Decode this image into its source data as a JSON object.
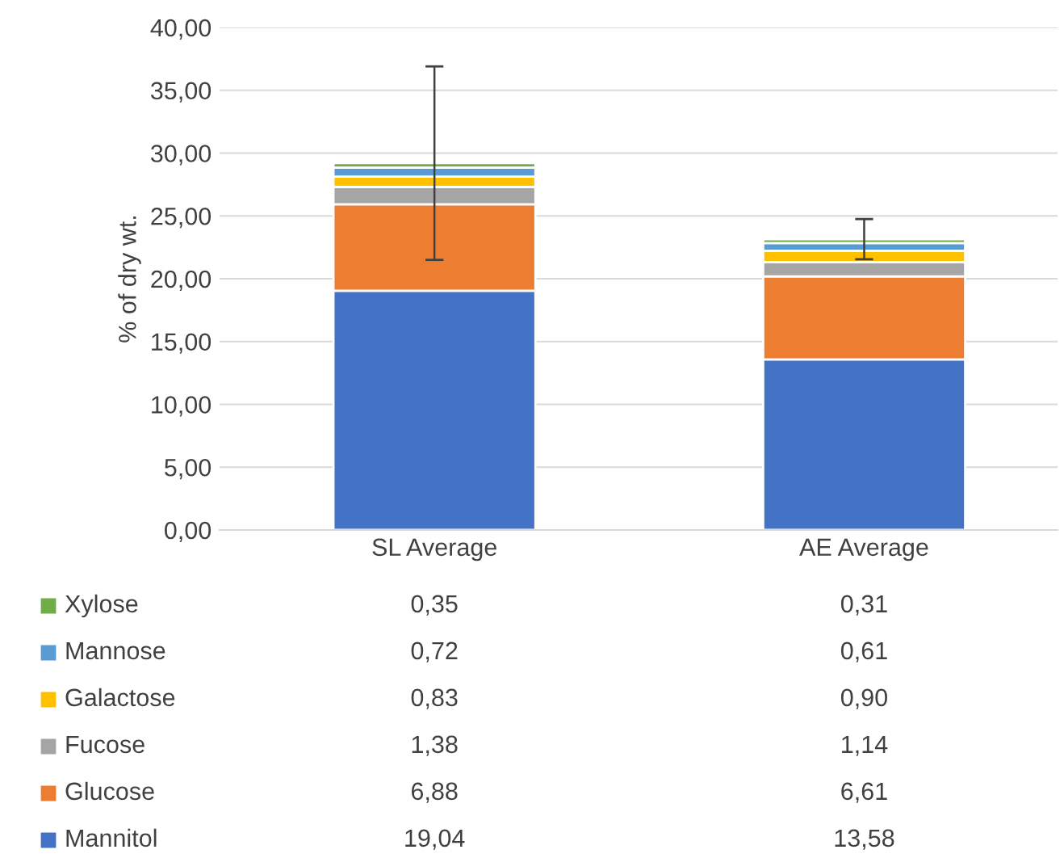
{
  "chart_data": {
    "type": "bar",
    "stacked": true,
    "ylabel": "% of dry wt.",
    "categories": [
      "SL Average",
      "AE Average"
    ],
    "series": [
      {
        "name": "Mannitol",
        "color": "#4472c4",
        "values": [
          19.04,
          13.58
        ],
        "value_labels": [
          "19,04",
          "13,58"
        ]
      },
      {
        "name": "Glucose",
        "color": "#ed7d31",
        "values": [
          6.88,
          6.61
        ],
        "value_labels": [
          "6,88",
          "6,61"
        ]
      },
      {
        "name": "Fucose",
        "color": "#a5a5a5",
        "values": [
          1.38,
          1.14
        ],
        "value_labels": [
          "1,38",
          "1,14"
        ]
      },
      {
        "name": "Galactose",
        "color": "#ffc000",
        "values": [
          0.83,
          0.9
        ],
        "value_labels": [
          "0,83",
          "0,90"
        ]
      },
      {
        "name": "Mannose",
        "color": "#5b9bd5",
        "values": [
          0.72,
          0.61
        ],
        "value_labels": [
          "0,72",
          "0,61"
        ]
      },
      {
        "name": "Xylose",
        "color": "#70ad47",
        "values": [
          0.35,
          0.31
        ],
        "value_labels": [
          "0,35",
          "0,31"
        ],
        "errors": [
          7.7,
          1.6
        ]
      }
    ],
    "ylim": [
      0,
      40
    ],
    "yticks": [
      {
        "value": 0,
        "label": "0,00"
      },
      {
        "value": 5,
        "label": "5,00"
      },
      {
        "value": 10,
        "label": "10,00"
      },
      {
        "value": 15,
        "label": "15,00"
      },
      {
        "value": 20,
        "label": "20,00"
      },
      {
        "value": 25,
        "label": "25,00"
      },
      {
        "value": 30,
        "label": "30,00"
      },
      {
        "value": 35,
        "label": "35,00"
      },
      {
        "value": 40,
        "label": "40,00"
      }
    ],
    "grid": "y",
    "legend": "bottom"
  }
}
